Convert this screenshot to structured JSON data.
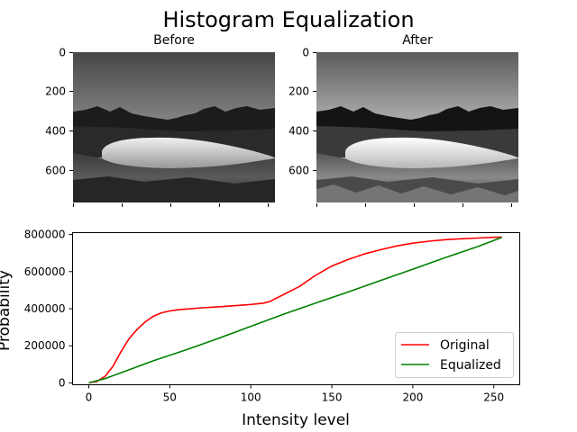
{
  "figure": {
    "title": "Histogram Equalization"
  },
  "chart_data": [
    {
      "type": "image",
      "title": "Before",
      "yticks": [
        0,
        200,
        400,
        600
      ],
      "ylim": [
        780,
        0
      ],
      "xlim": [
        0,
        1040
      ],
      "xticks": [
        0,
        250,
        500,
        750,
        1000
      ],
      "description_colors": {
        "sky": "#cfcfcf",
        "mountains": "#1a1a1a",
        "lake": "#d8d8d8",
        "grass": "#2a2a2a"
      }
    },
    {
      "type": "image",
      "title": "After",
      "yticks": [
        0,
        200,
        400,
        600
      ],
      "ylim": [
        780,
        0
      ],
      "xlim": [
        0,
        1040
      ],
      "xticks": [
        0,
        250,
        500,
        750,
        1000
      ],
      "description_colors": {
        "sky": "#e6e6e6",
        "mountains": "#141414",
        "lake": "#efefef",
        "grass": "#3a3a3a"
      }
    },
    {
      "type": "line",
      "xlabel": "Intensity level",
      "ylabel": "Probability",
      "xlim": [
        -10,
        266
      ],
      "ylim": [
        -10000,
        810000
      ],
      "xticks": [
        0,
        50,
        100,
        150,
        200,
        250
      ],
      "yticks": [
        0,
        200000,
        400000,
        600000,
        800000
      ],
      "legend_position": "lower-right",
      "series": [
        {
          "name": "Original",
          "color": "#ff0000",
          "x": [
            0,
            5,
            10,
            15,
            20,
            25,
            30,
            35,
            40,
            45,
            50,
            55,
            60,
            70,
            80,
            90,
            100,
            108,
            112,
            120,
            130,
            140,
            150,
            160,
            170,
            180,
            190,
            200,
            210,
            220,
            230,
            240,
            250,
            255
          ],
          "y": [
            0,
            8000,
            35000,
            90000,
            170000,
            240000,
            290000,
            330000,
            360000,
            378000,
            388000,
            394000,
            398000,
            405000,
            410000,
            416000,
            423000,
            430000,
            440000,
            475000,
            520000,
            580000,
            630000,
            665000,
            695000,
            718000,
            738000,
            753000,
            764000,
            772000,
            777000,
            781000,
            785000,
            786000
          ]
        },
        {
          "name": "Equalized",
          "color": "#008000",
          "x": [
            0,
            10,
            20,
            40,
            60,
            80,
            100,
            120,
            140,
            160,
            180,
            200,
            220,
            240,
            255
          ],
          "y": [
            0,
            23000,
            55000,
            120000,
            178000,
            240000,
            305000,
            370000,
            430000,
            490000,
            552000,
            613000,
            675000,
            735000,
            785000
          ]
        }
      ]
    }
  ]
}
